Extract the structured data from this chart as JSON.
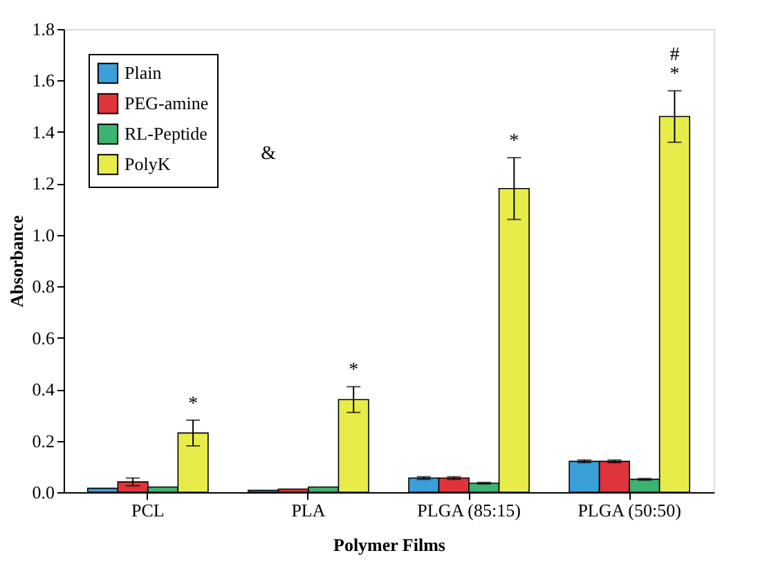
{
  "chart_data": {
    "type": "bar",
    "xlabel": "Polymer Films",
    "ylabel": "Absorbance",
    "categories": [
      "PCL",
      "PLA",
      "PLGA (85:15)",
      "PLGA (50:50)"
    ],
    "series": [
      {
        "name": "Plain",
        "color": "#3b9fd8",
        "values": [
          0.015,
          0.007,
          0.055,
          0.12
        ],
        "errors": [
          null,
          null,
          0.005,
          0.005
        ]
      },
      {
        "name": "PEG-amine",
        "color": "#e0343c",
        "values": [
          0.04,
          0.012,
          0.055,
          0.12
        ],
        "errors": [
          0.015,
          null,
          0.005,
          0.005
        ]
      },
      {
        "name": "RL-Peptide",
        "color": "#3cb371",
        "values": [
          0.02,
          0.02,
          0.035,
          0.05
        ],
        "errors": [
          null,
          null,
          0.003,
          0.003
        ]
      },
      {
        "name": "PolyK",
        "color": "#e8ec4a",
        "values": [
          0.23,
          0.36,
          1.18,
          1.46
        ],
        "errors": [
          0.05,
          0.05,
          0.12,
          0.1
        ]
      }
    ],
    "ylim": [
      0,
      1.8
    ],
    "yticks": [
      {
        "value": 0,
        "label": "0.0"
      },
      {
        "value": 0.2,
        "label": "0.2"
      },
      {
        "value": 0.4,
        "label": "0.4"
      },
      {
        "value": 0.6,
        "label": "0.6"
      },
      {
        "value": 0.8,
        "label": "0.8"
      },
      {
        "value": 1.0,
        "label": "1.0"
      },
      {
        "value": 1.2,
        "label": "1.2"
      },
      {
        "value": 1.4,
        "label": "1.4"
      },
      {
        "value": 1.6,
        "label": "1.6"
      },
      {
        "value": 1.8,
        "label": "1.8"
      }
    ],
    "annotations": [
      "*",
      "*",
      "*",
      "*",
      "#",
      "&"
    ],
    "legend": "top left",
    "grid": false
  }
}
